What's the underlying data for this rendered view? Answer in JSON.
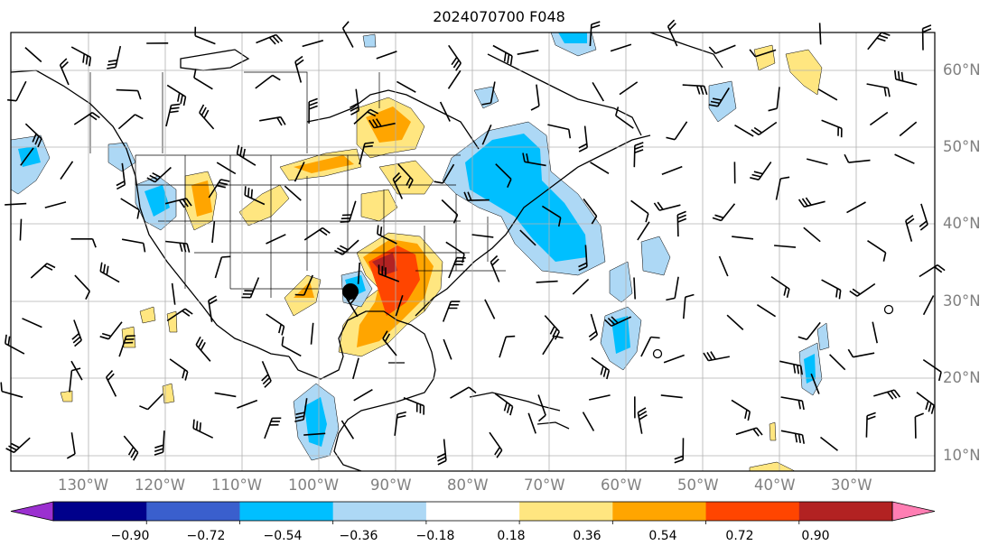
{
  "title": "2024070700 F048",
  "map": {
    "lon_labels": [
      "130°W",
      "120°W",
      "110°W",
      "100°W",
      "90°W",
      "80°W",
      "70°W",
      "60°W",
      "50°W",
      "40°W",
      "30°W"
    ],
    "lat_labels": [
      "60°N",
      "50°N",
      "40°N",
      "30°N",
      "20°N",
      "10°N"
    ],
    "marker": {
      "name": "black-dot-marker",
      "color": "#000000"
    }
  },
  "colorbar": {
    "ticks": [
      "−0.90",
      "−0.72",
      "−0.54",
      "−0.36",
      "−0.18",
      "0.18",
      "0.36",
      "0.54",
      "0.72",
      "0.90"
    ],
    "colors": [
      "#9b30d0",
      "#00008b",
      "#3a5fcd",
      "#00bfff",
      "#add8f5",
      "#ffffff",
      "#ffe680",
      "#ffa500",
      "#ff4500",
      "#b22222",
      "#ff7eb3"
    ]
  }
}
